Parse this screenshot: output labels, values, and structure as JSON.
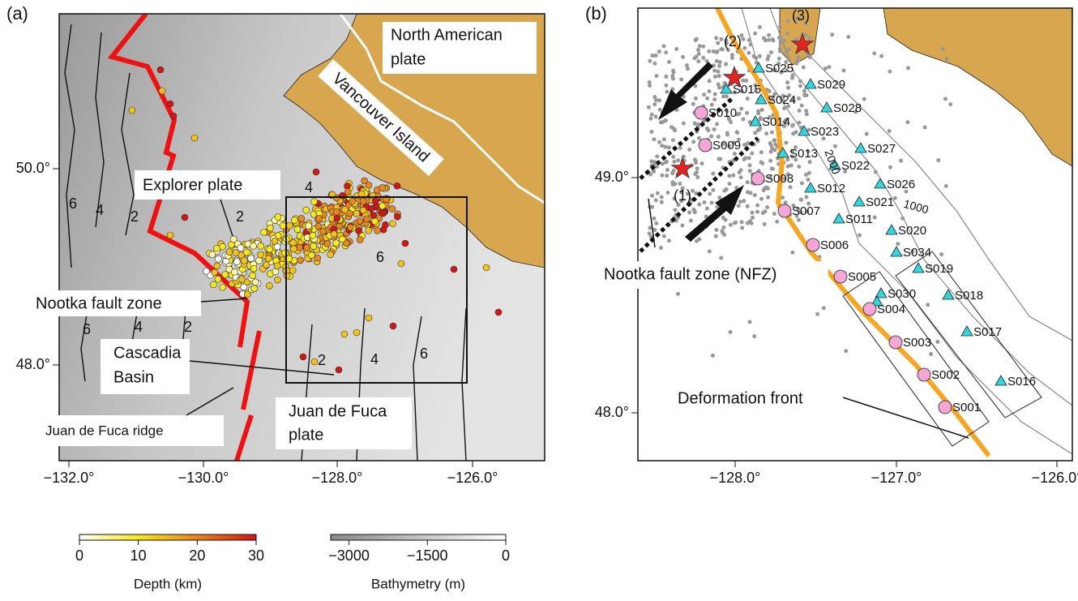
{
  "panel_a": {
    "label": "(a)",
    "lon_ticks": [
      "−132.0°",
      "−130.0°",
      "−128.0°",
      "−126.0°"
    ],
    "lat_ticks": [
      "50.0°",
      "48.0°"
    ],
    "labels": {
      "north_american": [
        "North American",
        "plate"
      ],
      "vancouver": "Vancouver Island",
      "explorer": "Explorer plate",
      "nootka": "Nootka fault zone",
      "cascadia": [
        "Cascadia",
        "Basin"
      ],
      "jdf_ridge": "Juan de Fuca ridge",
      "jdf_plate": [
        "Juan de Fuca",
        "plate"
      ]
    },
    "isochron_labels": [
      6,
      4,
      2,
      2,
      4,
      6,
      6,
      4,
      2,
      2,
      4,
      6
    ]
  },
  "panel_b": {
    "label": "(b)",
    "lon_ticks": [
      "−128.0°",
      "−127.0°",
      "−126.0°"
    ],
    "lat_ticks": [
      "49.0°",
      "48.0°"
    ],
    "events": [
      "(1)",
      "(2)",
      "(3)"
    ],
    "labels": {
      "nfz": "Nootka fault zone (NFZ)",
      "deformation": "Deformation front"
    },
    "contour_labels": [
      2000,
      1000
    ],
    "obs_stations": [
      "S025",
      "S029",
      "S015",
      "S024",
      "S028",
      "S014",
      "S023",
      "S027",
      "S013",
      "S022",
      "S026",
      "S012",
      "S021",
      "S011",
      "S020",
      "S034",
      "S019",
      "S030",
      "S018",
      "S017",
      "S016"
    ],
    "land_stations": [
      "S010",
      "S009",
      "S008",
      "S007",
      "S006",
      "S005",
      "S004",
      "S003",
      "S002",
      "S001"
    ]
  },
  "colorbars": [
    {
      "title": "Depth (km)",
      "lim": [
        0,
        30
      ],
      "ticks": [
        0,
        10,
        20,
        30
      ]
    },
    {
      "title": "Bathymetry (m)",
      "lim": [
        -3350,
        0
      ],
      "ticks": [
        {
          "value": -3000,
          "label": "−3000"
        },
        {
          "value": -1500,
          "label": "−1500"
        },
        0
      ]
    }
  ]
}
